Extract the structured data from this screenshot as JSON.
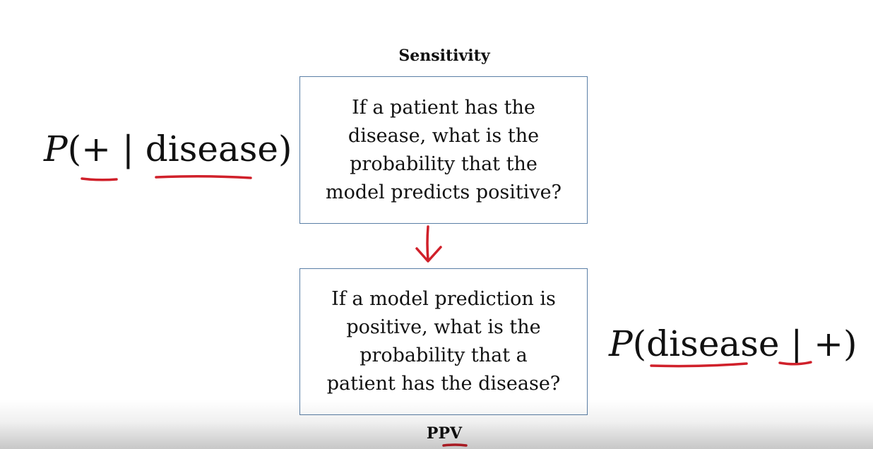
{
  "sensitivity": {
    "label": "Sensitivity",
    "question_lines": [
      "If a patient has the",
      "disease, what is the",
      "probability that the",
      "model predicts positive?"
    ],
    "formula": {
      "p": "P",
      "open": "(",
      "given": "+",
      "bar": " | ",
      "condition": "disease",
      "close": ")"
    }
  },
  "ppv": {
    "label": "PPV",
    "question_lines": [
      "If a model prediction is",
      "positive, what is the",
      "probability that a",
      "patient has the disease?"
    ],
    "formula": {
      "p": "P",
      "open": "(",
      "given": "disease",
      "bar": " | ",
      "condition": "+",
      "close": ")"
    }
  },
  "colors": {
    "box_border": "#5b7fa6",
    "annotation_ink": "#d0202a",
    "text": "#111111"
  }
}
